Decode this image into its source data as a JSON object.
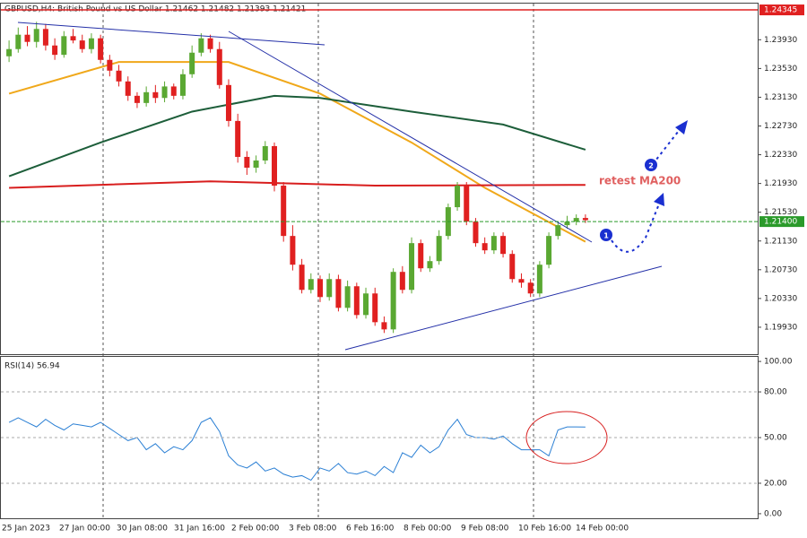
{
  "chart_data": [
    {
      "type": "candlestick",
      "title": "GBPUSD,H4: British Pound vs US Dollar  1.21462 1.21482 1.21393 1.21421",
      "x_labels": [
        "25 Jan 2023",
        "27 Jan 00:00",
        "30 Jan 08:00",
        "31 Jan 16:00",
        "2 Feb 00:00",
        "3 Feb 08:00",
        "6 Feb 16:00",
        "8 Feb 00:00",
        "9 Feb 08:00",
        "10 Feb 16:00",
        "14 Feb 00:00"
      ],
      "up_color": "#5aa832",
      "down_color": "#e02020",
      "open": [
        1.237,
        1.238,
        1.24,
        1.239,
        1.2408,
        1.2385,
        1.2372,
        1.2398,
        1.2392,
        1.238,
        1.2395,
        1.2365,
        1.235,
        1.2335,
        1.2315,
        1.2305,
        1.232,
        1.2312,
        1.2328,
        1.2315,
        1.2345,
        1.2375,
        1.2395,
        1.238,
        1.233,
        1.228,
        1.223,
        1.2215,
        1.2225,
        1.2245,
        1.219,
        1.212,
        1.208,
        1.2045,
        1.206,
        1.2035,
        1.206,
        1.202,
        1.205,
        1.201,
        1.204,
        1.2,
        1.199,
        1.207,
        1.2045,
        1.211,
        1.2075,
        1.2085,
        1.212,
        1.216,
        1.219,
        1.214,
        1.211,
        1.21,
        1.212,
        1.2095,
        1.206,
        1.2055,
        1.204,
        1.208,
        1.212,
        1.2135,
        1.214,
        1.2145
      ],
      "high": [
        1.2392,
        1.241,
        1.2412,
        1.2418,
        1.2415,
        1.2395,
        1.2405,
        1.2408,
        1.24,
        1.2402,
        1.24,
        1.2372,
        1.2358,
        1.2342,
        1.232,
        1.2328,
        1.233,
        1.2335,
        1.2332,
        1.2352,
        1.2385,
        1.2402,
        1.24,
        1.239,
        1.2338,
        1.229,
        1.2238,
        1.2232,
        1.2252,
        1.225,
        1.2195,
        1.2135,
        1.2088,
        1.2068,
        1.2065,
        1.2068,
        1.2066,
        1.2058,
        1.2055,
        1.2048,
        1.2048,
        1.2008,
        1.2075,
        1.2078,
        1.2118,
        1.2115,
        1.2092,
        1.2128,
        1.2165,
        1.2195,
        1.2195,
        1.2145,
        1.2118,
        1.2125,
        1.2125,
        1.21,
        1.2068,
        1.206,
        1.2085,
        1.2125,
        1.214,
        1.2148,
        1.215,
        1.215
      ],
      "low": [
        1.2362,
        1.2375,
        1.2384,
        1.2382,
        1.2378,
        1.2365,
        1.2368,
        1.2388,
        1.2375,
        1.2374,
        1.236,
        1.2342,
        1.2328,
        1.2308,
        1.2298,
        1.23,
        1.2305,
        1.2306,
        1.231,
        1.231,
        1.234,
        1.237,
        1.2375,
        1.2325,
        1.2272,
        1.2222,
        1.2205,
        1.2208,
        1.222,
        1.2182,
        1.2112,
        1.2072,
        1.204,
        1.204,
        1.2028,
        1.203,
        1.2015,
        1.2015,
        1.2005,
        1.2005,
        1.1995,
        1.1985,
        1.1985,
        1.204,
        1.204,
        1.207,
        1.207,
        1.208,
        1.2115,
        1.2155,
        1.2135,
        1.2105,
        1.2095,
        1.2095,
        1.209,
        1.2055,
        1.2048,
        1.2035,
        1.2035,
        1.2075,
        1.2115,
        1.213,
        1.2135,
        1.2138
      ],
      "close": [
        1.238,
        1.24,
        1.239,
        1.2408,
        1.2385,
        1.2372,
        1.2398,
        1.2392,
        1.238,
        1.2395,
        1.2365,
        1.235,
        1.2335,
        1.2315,
        1.2305,
        1.232,
        1.2312,
        1.2328,
        1.2315,
        1.2345,
        1.2375,
        1.2395,
        1.238,
        1.233,
        1.228,
        1.223,
        1.2215,
        1.2225,
        1.2245,
        1.219,
        1.212,
        1.208,
        1.2045,
        1.206,
        1.2035,
        1.206,
        1.202,
        1.205,
        1.201,
        1.204,
        1.2,
        1.199,
        1.207,
        1.2045,
        1.211,
        1.2075,
        1.2085,
        1.212,
        1.216,
        1.219,
        1.214,
        1.211,
        1.21,
        1.212,
        1.2095,
        1.206,
        1.2055,
        1.204,
        1.208,
        1.212,
        1.2135,
        1.214,
        1.2145,
        1.2142
      ],
      "lines": [
        {
          "color": "#f0a81a",
          "x": [
            0,
            12,
            24,
            34,
            44,
            52,
            63
          ],
          "values": [
            1.2318,
            1.2362,
            1.2362,
            1.2318,
            1.225,
            1.2187,
            1.2112
          ]
        },
        {
          "color": "#1d5e3a",
          "x": [
            0,
            10,
            20,
            29,
            34,
            44,
            54,
            63
          ],
          "values": [
            1.2203,
            1.225,
            1.2293,
            1.2315,
            1.2312,
            1.2293,
            1.2275,
            1.224
          ]
        },
        {
          "color": "#d81e1e",
          "x": [
            0,
            22,
            40,
            63
          ],
          "values": [
            1.2187,
            1.2196,
            1.219,
            1.2191
          ]
        }
      ],
      "ylim": [
        1.19555,
        1.24433
      ],
      "yticks": [
        {
          "value": 1.2393,
          "label": "1.23930"
        },
        {
          "value": 1.2353,
          "label": "1.23530"
        },
        {
          "value": 1.2313,
          "label": "1.23130"
        },
        {
          "value": 1.2273,
          "label": "1.22730"
        },
        {
          "value": 1.2233,
          "label": "1.22330"
        },
        {
          "value": 1.2193,
          "label": "1.21930"
        },
        {
          "value": 1.2153,
          "label": "1.21530"
        },
        {
          "value": 1.2113,
          "label": "1.21130"
        },
        {
          "value": 1.2073,
          "label": "1.20730"
        },
        {
          "value": 1.2033,
          "label": "1.20330"
        },
        {
          "value": 1.1993,
          "label": "1.19930"
        }
      ],
      "resistance": 1.24345,
      "current_price": {
        "value": 1.214,
        "label": "1.21400"
      },
      "annotation": "retest MA200",
      "markers": [
        "1",
        "2"
      ]
    },
    {
      "type": "line",
      "title": "RSI(14) 56.94",
      "color": "#2a7fd4",
      "values": [
        60,
        63,
        60,
        57,
        62,
        58,
        55,
        59,
        58,
        57,
        60,
        56,
        52,
        48,
        50,
        42,
        46,
        40,
        44,
        42,
        48,
        60,
        63,
        54,
        38,
        32,
        30,
        34,
        28,
        30,
        26,
        24,
        25,
        22,
        30,
        28,
        33,
        27,
        26,
        28,
        25,
        31,
        27,
        40,
        37,
        45,
        40,
        44,
        55,
        62,
        52,
        50,
        50,
        49,
        51,
        46,
        42,
        42,
        42,
        38,
        55,
        57,
        57,
        56.94
      ],
      "ylim": [
        -3,
        103
      ],
      "yticks": [
        {
          "value": 100,
          "label": "100.00"
        },
        {
          "value": 80,
          "label": "80.00"
        },
        {
          "value": 50,
          "label": "50.00"
        },
        {
          "value": 20,
          "label": "20.00"
        },
        {
          "value": 0,
          "label": "0.00"
        }
      ]
    }
  ]
}
